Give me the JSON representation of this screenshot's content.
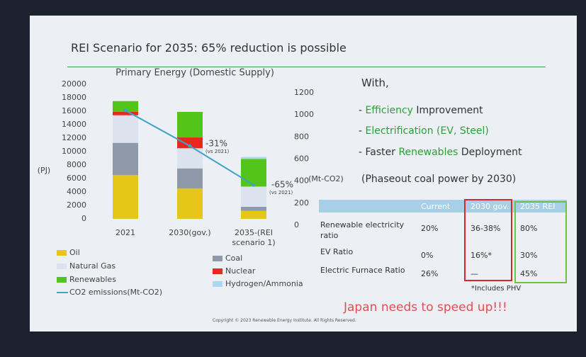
{
  "slide_title": "REI Scenario for 2035: 65% reduction is possible",
  "chart_data": {
    "type": "bar",
    "stacked": true,
    "title": "Primary Energy (Domestic Supply)",
    "y_label": "(PJ)",
    "y2_label": "(Mt-CO2)",
    "categories": [
      "2021",
      "2030(gov.)",
      "2035-(REI scenario 1)"
    ],
    "series": [
      {
        "name": "Oil",
        "color": "#e6c619",
        "values": [
          6500,
          4500,
          1200
        ]
      },
      {
        "name": "Coal",
        "color": "#8e99aa",
        "values": [
          4800,
          3000,
          600
        ]
      },
      {
        "name": "Natural Gas",
        "color": "#dde3ee",
        "values": [
          4100,
          3000,
          3000
        ]
      },
      {
        "name": "Nuclear",
        "color": "#e8281e",
        "values": [
          500,
          1600,
          0
        ]
      },
      {
        "name": "Renewables",
        "color": "#52c41a",
        "values": [
          1600,
          3800,
          4100
        ]
      },
      {
        "name": "Hydrogen/Ammonia",
        "color": "#a9d8f0",
        "values": [
          0,
          0,
          300
        ]
      },
      {
        "name": "CO2 emissions(Mt-CO2)",
        "color": "#3fa3c8",
        "type": "line",
        "axis": "y2",
        "values": [
          1040,
          718,
          364
        ]
      }
    ],
    "ylim": [
      0,
      20000
    ],
    "yticks": [
      0,
      2000,
      4000,
      6000,
      8000,
      10000,
      12000,
      14000,
      16000,
      18000,
      20000
    ],
    "y2lim": [
      0,
      1200
    ],
    "y2ticks": [
      0,
      200,
      400,
      600,
      800,
      1000,
      1200
    ],
    "grid": false,
    "annotations": [
      "-31%",
      "(vs 2021)",
      "-65%",
      "(vs 2021)"
    ]
  },
  "intro": "With,",
  "bullets": [
    [
      {
        "text": "- "
      },
      {
        "text": "Efficiency",
        "color": "#2e9e3a"
      },
      {
        "text": " Improvement"
      }
    ],
    [
      {
        "text": "- "
      },
      {
        "text": "Electrification (EV, Steel)",
        "color": "#2e9e3a"
      }
    ],
    [
      {
        "text": "- Faster "
      },
      {
        "text": "Renewables",
        "color": "#2e9e3a"
      },
      {
        "text": " Deployment"
      }
    ]
  ],
  "phaseout": "(Phaseout coal power by 2030)",
  "table": {
    "header": [
      "Current",
      "2030 gov.",
      "2035 REI"
    ],
    "rows": [
      [
        "Renewable electricity ratio",
        "20%",
        "36-38%",
        "80%"
      ],
      [
        "EV Ratio",
        "0%",
        "16%*",
        "30%"
      ],
      [
        "Electric Furnace Ratio",
        "26%",
        "—",
        "45%"
      ]
    ],
    "note": "*Includes PHV"
  },
  "callout": "Japan needs to speed up!!!",
  "copyright": "Copyright © 2023 Renewable Energy Institute. All Rights Reserved."
}
